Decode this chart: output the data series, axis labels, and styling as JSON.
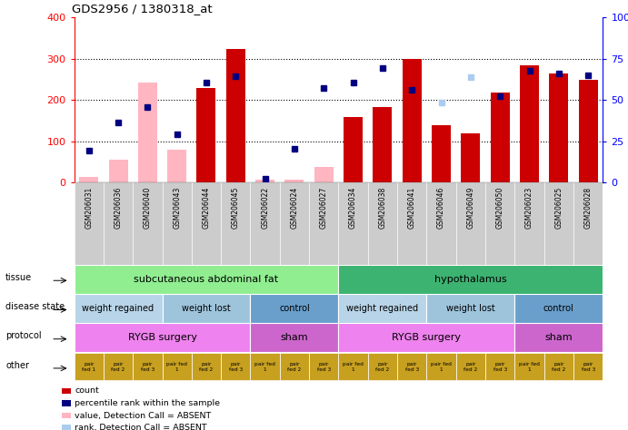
{
  "title": "GDS2956 / 1380318_at",
  "samples": [
    "GSM206031",
    "GSM206036",
    "GSM206040",
    "GSM206043",
    "GSM206044",
    "GSM206045",
    "GSM206022",
    "GSM206024",
    "GSM206027",
    "GSM206034",
    "GSM206038",
    "GSM206041",
    "GSM206046",
    "GSM206049",
    "GSM206050",
    "GSM206023",
    "GSM206025",
    "GSM206028"
  ],
  "count_values": [
    15,
    55,
    242,
    80,
    230,
    323,
    8,
    8,
    38,
    158,
    183,
    300,
    140,
    120,
    217,
    283,
    265,
    249
  ],
  "count_absent": [
    true,
    true,
    true,
    true,
    false,
    false,
    true,
    true,
    true,
    false,
    false,
    false,
    false,
    false,
    false,
    false,
    false,
    false
  ],
  "percentile_values": [
    78,
    145,
    183,
    118,
    242,
    257,
    10,
    83,
    228,
    242,
    278,
    225,
    193,
    256,
    210,
    270,
    263,
    260
  ],
  "percentile_absent": [
    false,
    false,
    false,
    false,
    false,
    false,
    false,
    false,
    false,
    false,
    false,
    false,
    true,
    true,
    false,
    false,
    false,
    false
  ],
  "left_ticks": [
    0,
    100,
    200,
    300,
    400
  ],
  "right_ticks": [
    0,
    25,
    50,
    75,
    100
  ],
  "right_tick_labels": [
    "0",
    "25",
    "50",
    "75",
    "100%"
  ],
  "tissue_segments": [
    {
      "text": "subcutaneous abdominal fat",
      "start": 0,
      "end": 9,
      "color": "#90EE90"
    },
    {
      "text": "hypothalamus",
      "start": 9,
      "end": 18,
      "color": "#3CB371"
    }
  ],
  "disease_segments": [
    {
      "text": "weight regained",
      "start": 0,
      "end": 3,
      "color": "#B8D4E8"
    },
    {
      "text": "weight lost",
      "start": 3,
      "end": 6,
      "color": "#9EC4DC"
    },
    {
      "text": "control",
      "start": 6,
      "end": 9,
      "color": "#6A9FCC"
    },
    {
      "text": "weight regained",
      "start": 9,
      "end": 12,
      "color": "#B8D4E8"
    },
    {
      "text": "weight lost",
      "start": 12,
      "end": 15,
      "color": "#9EC4DC"
    },
    {
      "text": "control",
      "start": 15,
      "end": 18,
      "color": "#6A9FCC"
    }
  ],
  "protocol_segments": [
    {
      "text": "RYGB surgery",
      "start": 0,
      "end": 6,
      "color": "#EE82EE"
    },
    {
      "text": "sham",
      "start": 6,
      "end": 9,
      "color": "#CC66CC"
    },
    {
      "text": "RYGB surgery",
      "start": 9,
      "end": 15,
      "color": "#EE82EE"
    },
    {
      "text": "sham",
      "start": 15,
      "end": 18,
      "color": "#CC66CC"
    }
  ],
  "other_labels": [
    "pair\nfed 1",
    "pair\nfed 2",
    "pair\nfed 3",
    "pair fed\n1",
    "pair\nfed 2",
    "pair\nfed 3",
    "pair fed\n1",
    "pair\nfed 2",
    "pair\nfed 3",
    "pair fed\n1",
    "pair\nfed 2",
    "pair\nfed 3",
    "pair fed\n1",
    "pair\nfed 2",
    "pair\nfed 3",
    "pair fed\n1",
    "pair\nfed 2",
    "pair\nfed 3"
  ],
  "other_color": "#C8A020",
  "bar_color_present": "#CC0000",
  "bar_color_absent": "#FFB6C1",
  "dot_color_present": "#000080",
  "dot_color_absent": "#AACCEE",
  "xtick_bg": "#CCCCCC",
  "legend_items": [
    {
      "color": "#CC0000",
      "label": "count"
    },
    {
      "color": "#000080",
      "label": "percentile rank within the sample"
    },
    {
      "color": "#FFB6C1",
      "label": "value, Detection Call = ABSENT"
    },
    {
      "color": "#AACCEE",
      "label": "rank, Detection Call = ABSENT"
    }
  ]
}
